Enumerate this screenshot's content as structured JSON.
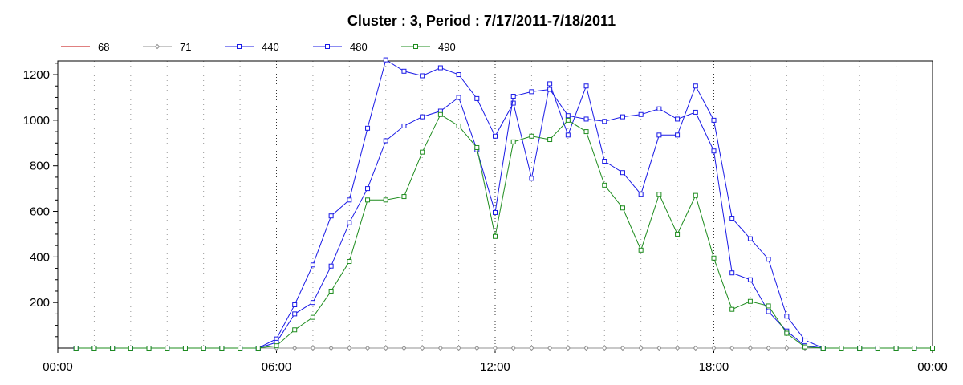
{
  "chart_data": {
    "type": "line",
    "title": "Cluster : 3, Period : 7/17/2011-7/18/2011",
    "xlabel": "",
    "ylabel": "",
    "x_ticks": [
      "00:00",
      "06:00",
      "12:00",
      "18:00",
      "00:00"
    ],
    "y_ticks": [
      200,
      400,
      600,
      800,
      1000,
      1200
    ],
    "ylim": [
      0,
      1260
    ],
    "xlim_hours": [
      0,
      24
    ],
    "grid": true,
    "legend_position": "top-left",
    "x_hours": [
      0.5,
      1,
      1.5,
      2,
      2.5,
      3,
      3.5,
      4,
      4.5,
      5,
      5.5,
      6,
      6.5,
      7,
      7.5,
      8,
      8.5,
      9,
      9.5,
      10,
      10.5,
      11,
      11.5,
      12,
      12.5,
      13,
      13.5,
      14,
      14.5,
      15,
      15.5,
      16,
      16.5,
      17,
      17.5,
      18,
      18.5,
      19,
      19.5,
      20,
      20.5,
      21,
      21.5,
      22,
      22.5,
      23,
      23.5,
      24
    ],
    "series": [
      {
        "name": "68",
        "color": "#c00000",
        "marker": "none",
        "values": [
          0,
          0,
          0,
          0,
          0,
          0,
          0,
          0,
          0,
          0,
          0,
          0,
          0,
          0,
          0,
          0,
          0,
          0,
          0,
          0,
          0,
          0,
          0,
          0,
          0,
          0,
          0,
          0,
          0,
          0,
          0,
          0,
          0,
          0,
          0,
          0,
          0,
          0,
          0,
          0,
          0,
          0,
          0,
          0,
          0,
          0,
          0,
          0
        ]
      },
      {
        "name": "71",
        "color": "#909090",
        "marker": "diamond",
        "values": [
          0,
          0,
          0,
          0,
          0,
          0,
          0,
          0,
          0,
          0,
          0,
          0,
          0,
          0,
          0,
          0,
          0,
          0,
          0,
          0,
          0,
          0,
          0,
          0,
          0,
          0,
          0,
          0,
          0,
          0,
          0,
          0,
          0,
          0,
          0,
          0,
          0,
          0,
          0,
          0,
          0,
          0,
          0,
          0,
          0,
          0,
          0,
          0
        ]
      },
      {
        "name": "440",
        "color": "#1a1ae6",
        "marker": "square",
        "values": [
          0,
          0,
          0,
          0,
          0,
          0,
          0,
          0,
          0,
          0,
          0,
          40,
          190,
          365,
          580,
          650,
          965,
          1265,
          1215,
          1195,
          1230,
          1200,
          1095,
          930,
          1075,
          745,
          1160,
          935,
          1150,
          820,
          770,
          675,
          935,
          935,
          1150,
          1000,
          570,
          480,
          390,
          140,
          35,
          0,
          0,
          0,
          0,
          0,
          0,
          0
        ]
      },
      {
        "name": "480",
        "color": "#1a1ae6",
        "marker": "square",
        "values": [
          0,
          0,
          0,
          0,
          0,
          0,
          0,
          0,
          0,
          0,
          0,
          25,
          150,
          200,
          360,
          550,
          700,
          910,
          975,
          1015,
          1040,
          1100,
          870,
          595,
          1105,
          1125,
          1135,
          1020,
          1005,
          995,
          1015,
          1025,
          1050,
          1005,
          1035,
          865,
          330,
          300,
          160,
          75,
          10,
          0,
          0,
          0,
          0,
          0,
          0,
          0
        ]
      },
      {
        "name": "490",
        "color": "#1e8c1e",
        "marker": "square",
        "values": [
          0,
          0,
          0,
          0,
          0,
          0,
          0,
          0,
          0,
          0,
          0,
          10,
          80,
          135,
          250,
          380,
          650,
          650,
          665,
          860,
          1025,
          975,
          880,
          490,
          905,
          930,
          915,
          1000,
          950,
          715,
          615,
          430,
          675,
          500,
          670,
          395,
          170,
          205,
          185,
          65,
          5,
          0,
          0,
          0,
          0,
          0,
          0,
          0
        ]
      }
    ]
  }
}
